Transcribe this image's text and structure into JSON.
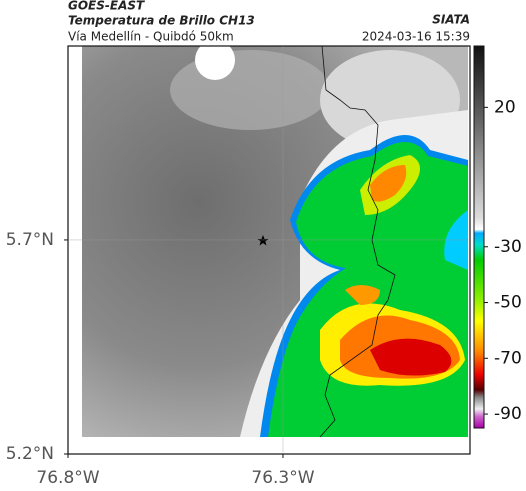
{
  "header": {
    "satellite": "GOES-EAST",
    "product": "Temperatura de Brillo CH13",
    "region": "Vía Medellín - Quibdó 50km",
    "source": "SIATA",
    "timestamp": "2024-03-16 15:39"
  },
  "map": {
    "lonlim": [
      -76.8,
      -75.865
    ],
    "latlim": [
      5.2,
      6.153
    ],
    "lon_ticks": [
      {
        "value": -76.8,
        "label": "76.8°W"
      },
      {
        "value": -76.3,
        "label": "76.3°W"
      }
    ],
    "lat_ticks": [
      {
        "value": 5.7,
        "label": "5.7°N"
      },
      {
        "value": 5.2,
        "label": "5.2°N"
      }
    ]
  },
  "colorbar": {
    "clim": [
      -95,
      42
    ],
    "ticks": [
      20,
      -30,
      -50,
      -70,
      -90
    ]
  }
}
